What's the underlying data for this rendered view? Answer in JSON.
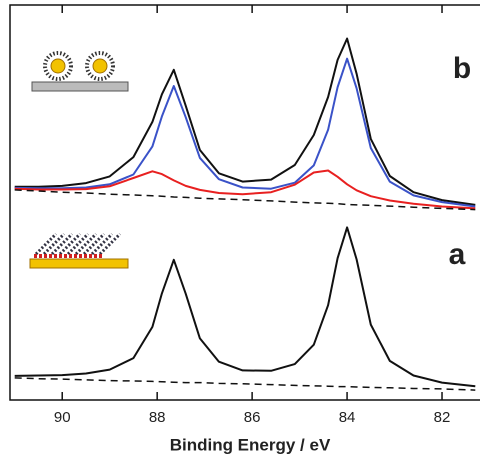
{
  "chart_data": {
    "type": "line",
    "xlabel": "Binding Energy / eV",
    "annotations": [
      "b",
      "a"
    ],
    "x": [
      91,
      90.5,
      90,
      89.5,
      89,
      88.5,
      88.1,
      87.9,
      87.65,
      87.4,
      87.1,
      86.7,
      86.2,
      85.6,
      85.1,
      84.7,
      84.4,
      84.2,
      84.0,
      83.8,
      83.5,
      83.1,
      82.6,
      82,
      81.3
    ],
    "xlim": [
      91.1,
      81.2
    ],
    "xticks": [
      90,
      88,
      86,
      84,
      82
    ],
    "ylim": [
      0,
      100
    ],
    "series": [
      {
        "color": "#111111",
        "dashed": false,
        "values": [
          54.0,
          54.0,
          54.2,
          54.9,
          56.6,
          61.5,
          70.4,
          77.4,
          83.6,
          74.5,
          63.3,
          57.4,
          55.3,
          55.8,
          59.5,
          67.1,
          76.7,
          86.1,
          91.5,
          82.6,
          66.1,
          56.7,
          52.6,
          50.6,
          49.4
        ]
      },
      {
        "color": "#3a52c8",
        "dashed": false,
        "values": [
          53.7,
          53.6,
          53.6,
          53.8,
          54.6,
          57.1,
          64.2,
          71.8,
          79.5,
          71.6,
          61.3,
          55.9,
          53.8,
          53.5,
          55.0,
          59.4,
          68.4,
          79.2,
          86.4,
          78.9,
          63.8,
          55.3,
          51.8,
          50.1,
          49.0
        ]
      },
      {
        "color": "#e82020",
        "dashed": false,
        "values": [
          53.5,
          53.3,
          53.3,
          53.4,
          54.1,
          56.2,
          57.9,
          57.2,
          55.6,
          54.2,
          53.2,
          52.4,
          52.1,
          52.6,
          54.5,
          57.6,
          58.1,
          56.5,
          54.6,
          53.1,
          51.6,
          50.5,
          49.7,
          49.0,
          48.5
        ]
      },
      {
        "color": "#111111",
        "dashed": true,
        "values": [
          53.2,
          52.9,
          52.6,
          52.4,
          52.1,
          51.9,
          51.7,
          51.6,
          51.4,
          51.3,
          51.1,
          50.9,
          50.7,
          50.4,
          50.1,
          49.9,
          49.8,
          49.7,
          49.5,
          49.4,
          49.3,
          49.1,
          48.8,
          48.5,
          48.2
        ]
      },
      {
        "color": "#111111",
        "dashed": false,
        "values": [
          6.1,
          6.2,
          6.3,
          6.7,
          7.7,
          10.6,
          18.5,
          27.0,
          35.5,
          26.9,
          15.6,
          9.7,
          7.5,
          7.4,
          9.1,
          14.0,
          24.0,
          35.9,
          43.7,
          35.6,
          19.1,
          9.9,
          6.2,
          4.4,
          3.5
        ]
      },
      {
        "color": "#111111",
        "dashed": true,
        "values": [
          5.6,
          5.4,
          5.3,
          5.1,
          4.9,
          4.8,
          4.7,
          4.6,
          4.5,
          4.4,
          4.4,
          4.2,
          4.1,
          3.9,
          3.7,
          3.6,
          3.5,
          3.4,
          3.4,
          3.3,
          3.2,
          3.1,
          2.9,
          2.8,
          2.5
        ]
      }
    ]
  }
}
